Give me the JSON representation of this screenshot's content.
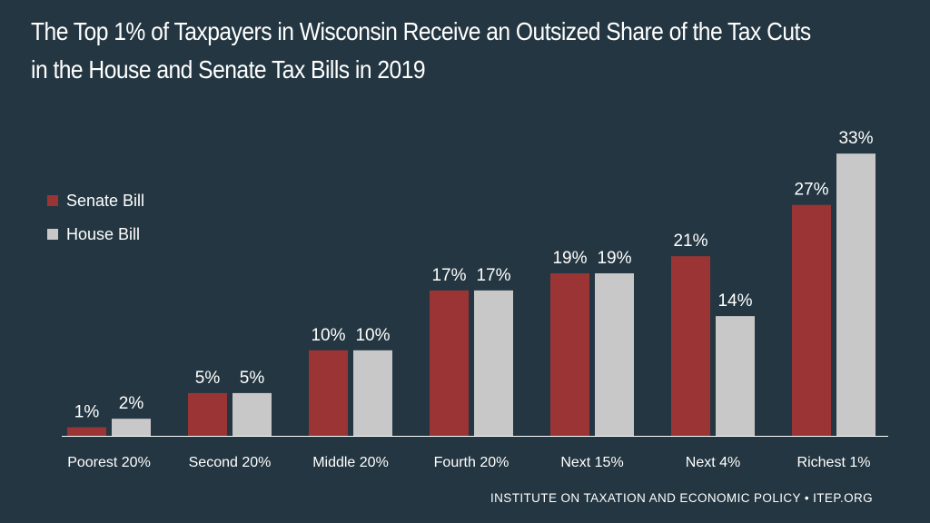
{
  "chart_data": {
    "type": "bar",
    "title": "The Top 1% of Taxpayers in Wisconsin Receive an Outsized Share of the Tax Cuts in the House and Senate Tax Bills in 2019",
    "categories": [
      "Poorest 20%",
      "Second 20%",
      "Middle 20%",
      "Fourth 20%",
      "Next 15%",
      "Next 4%",
      "Richest 1%"
    ],
    "series": [
      {
        "name": "Senate Bill",
        "color": "#9b3535",
        "values": [
          1,
          5,
          10,
          17,
          19,
          21,
          27
        ],
        "labels": [
          "1%",
          "5%",
          "10%",
          "17%",
          "19%",
          "21%",
          "27%"
        ]
      },
      {
        "name": "House Bill",
        "color": "#c8c8c8",
        "values": [
          2,
          5,
          10,
          17,
          19,
          14,
          33
        ],
        "labels": [
          "2%",
          "5%",
          "10%",
          "17%",
          "19%",
          "14%",
          "33%"
        ]
      }
    ],
    "xlabel": "",
    "ylabel": "",
    "ylim": [
      0,
      33
    ],
    "grid": false,
    "legend": "top-left"
  },
  "title_line1": "The Top 1% of Taxpayers in Wisconsin Receive an Outsized Share of the Tax Cuts",
  "title_line2": "in the House and Senate Tax Bills in 2019",
  "source": "INSTITUTE ON TAXATION AND ECONOMIC POLICY • ITEP.ORG",
  "colors": {
    "background": "#233641",
    "senate": "#9b3535",
    "house": "#c8c8c8",
    "text": "#ffffff"
  }
}
